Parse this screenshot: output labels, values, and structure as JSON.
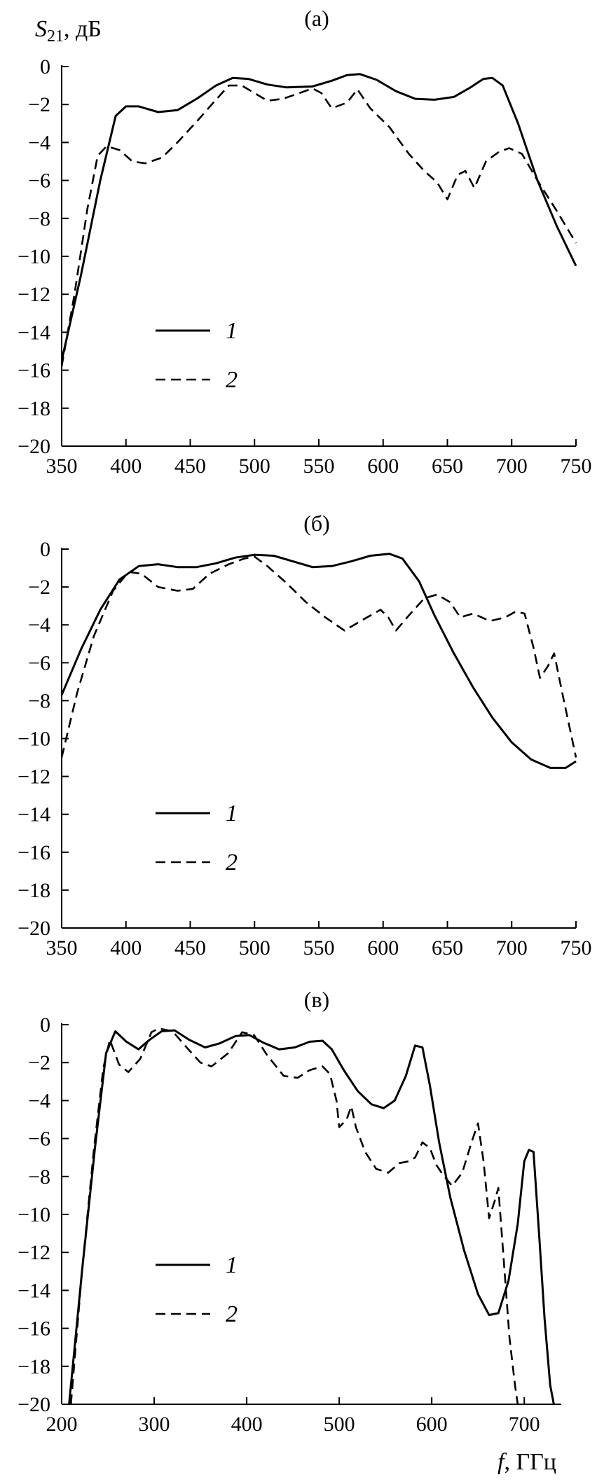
{
  "chart_data": [
    {
      "type": "line",
      "panel_label": "(а)",
      "ylabel": "S21, дБ",
      "xlim": [
        350,
        750
      ],
      "ylim": [
        -20,
        0
      ],
      "x_ticks": [
        350,
        400,
        450,
        500,
        550,
        600,
        650,
        700,
        750
      ],
      "y_ticks": [
        0,
        -2,
        -4,
        -6,
        -8,
        -10,
        -12,
        -14,
        -16,
        -18,
        -20
      ],
      "legend": [
        "1",
        "2"
      ],
      "series": [
        {
          "name": "1",
          "style": "solid",
          "points": [
            [
              350,
              -15.5
            ],
            [
              365,
              -11
            ],
            [
              380,
              -6
            ],
            [
              392,
              -2.6
            ],
            [
              400,
              -2.1
            ],
            [
              410,
              -2.1
            ],
            [
              425,
              -2.4
            ],
            [
              440,
              -2.3
            ],
            [
              455,
              -1.7
            ],
            [
              470,
              -1.0
            ],
            [
              483,
              -0.6
            ],
            [
              495,
              -0.65
            ],
            [
              510,
              -0.95
            ],
            [
              525,
              -1.1
            ],
            [
              545,
              -1.05
            ],
            [
              560,
              -0.75
            ],
            [
              572,
              -0.45
            ],
            [
              582,
              -0.4
            ],
            [
              595,
              -0.7
            ],
            [
              610,
              -1.3
            ],
            [
              625,
              -1.7
            ],
            [
              640,
              -1.75
            ],
            [
              655,
              -1.6
            ],
            [
              668,
              -1.1
            ],
            [
              678,
              -0.65
            ],
            [
              685,
              -0.6
            ],
            [
              693,
              -1.0
            ],
            [
              705,
              -3.0
            ],
            [
              720,
              -6.0
            ],
            [
              735,
              -8.4
            ],
            [
              750,
              -10.5
            ]
          ]
        },
        {
          "name": "2",
          "style": "dashed",
          "points": [
            [
              350,
              -15.8
            ],
            [
              360,
              -12
            ],
            [
              370,
              -7.5
            ],
            [
              378,
              -4.7
            ],
            [
              385,
              -4.2
            ],
            [
              395,
              -4.4
            ],
            [
              405,
              -5.0
            ],
            [
              415,
              -5.1
            ],
            [
              428,
              -4.8
            ],
            [
              440,
              -4.0
            ],
            [
              455,
              -2.9
            ],
            [
              468,
              -1.9
            ],
            [
              480,
              -1.0
            ],
            [
              490,
              -1.0
            ],
            [
              500,
              -1.4
            ],
            [
              510,
              -1.8
            ],
            [
              522,
              -1.7
            ],
            [
              535,
              -1.4
            ],
            [
              545,
              -1.15
            ],
            [
              552,
              -1.4
            ],
            [
              560,
              -2.2
            ],
            [
              572,
              -1.9
            ],
            [
              580,
              -1.2
            ],
            [
              590,
              -2.2
            ],
            [
              605,
              -3.2
            ],
            [
              620,
              -4.6
            ],
            [
              632,
              -5.5
            ],
            [
              642,
              -6.1
            ],
            [
              650,
              -7.0
            ],
            [
              658,
              -5.7
            ],
            [
              664,
              -5.5
            ],
            [
              671,
              -6.4
            ],
            [
              680,
              -5.0
            ],
            [
              690,
              -4.5
            ],
            [
              698,
              -4.3
            ],
            [
              708,
              -4.6
            ],
            [
              720,
              -6.0
            ],
            [
              735,
              -7.6
            ],
            [
              750,
              -9.3
            ]
          ]
        }
      ]
    },
    {
      "type": "line",
      "panel_label": "(б)",
      "xlim": [
        350,
        750
      ],
      "ylim": [
        -20,
        0
      ],
      "x_ticks": [
        350,
        400,
        450,
        500,
        550,
        600,
        650,
        700,
        750
      ],
      "y_ticks": [
        0,
        -2,
        -4,
        -6,
        -8,
        -10,
        -12,
        -14,
        -16,
        -18,
        -20
      ],
      "legend": [
        "1",
        "2"
      ],
      "series": [
        {
          "name": "1",
          "style": "solid",
          "points": [
            [
              350,
              -7.7
            ],
            [
              365,
              -5.3
            ],
            [
              380,
              -3.2
            ],
            [
              395,
              -1.6
            ],
            [
              410,
              -0.9
            ],
            [
              425,
              -0.8
            ],
            [
              440,
              -0.95
            ],
            [
              455,
              -0.95
            ],
            [
              470,
              -0.75
            ],
            [
              485,
              -0.45
            ],
            [
              500,
              -0.3
            ],
            [
              515,
              -0.35
            ],
            [
              530,
              -0.65
            ],
            [
              545,
              -0.95
            ],
            [
              560,
              -0.9
            ],
            [
              575,
              -0.65
            ],
            [
              590,
              -0.35
            ],
            [
              605,
              -0.25
            ],
            [
              615,
              -0.5
            ],
            [
              628,
              -1.7
            ],
            [
              640,
              -3.5
            ],
            [
              655,
              -5.5
            ],
            [
              670,
              -7.3
            ],
            [
              685,
              -8.9
            ],
            [
              700,
              -10.2
            ],
            [
              715,
              -11.1
            ],
            [
              730,
              -11.55
            ],
            [
              742,
              -11.55
            ],
            [
              750,
              -11.2
            ]
          ]
        },
        {
          "name": "2",
          "style": "dashed",
          "points": [
            [
              350,
              -11
            ],
            [
              362,
              -7.6
            ],
            [
              375,
              -4.6
            ],
            [
              390,
              -2.2
            ],
            [
              402,
              -1.2
            ],
            [
              412,
              -1.3
            ],
            [
              425,
              -2.0
            ],
            [
              440,
              -2.2
            ],
            [
              452,
              -2.1
            ],
            [
              465,
              -1.3
            ],
            [
              480,
              -0.8
            ],
            [
              492,
              -0.5
            ],
            [
              500,
              -0.4
            ],
            [
              510,
              -0.9
            ],
            [
              525,
              -1.8
            ],
            [
              540,
              -2.8
            ],
            [
              555,
              -3.6
            ],
            [
              570,
              -4.3
            ],
            [
              585,
              -3.7
            ],
            [
              598,
              -3.2
            ],
            [
              604,
              -3.6
            ],
            [
              610,
              -4.3
            ],
            [
              620,
              -3.5
            ],
            [
              632,
              -2.6
            ],
            [
              642,
              -2.4
            ],
            [
              652,
              -2.8
            ],
            [
              660,
              -3.6
            ],
            [
              670,
              -3.4
            ],
            [
              683,
              -3.8
            ],
            [
              695,
              -3.6
            ],
            [
              703,
              -3.3
            ],
            [
              710,
              -3.4
            ],
            [
              717,
              -5.2
            ],
            [
              722,
              -6.8
            ],
            [
              728,
              -6.2
            ],
            [
              733,
              -5.5
            ],
            [
              740,
              -7.8
            ],
            [
              750,
              -11
            ]
          ]
        }
      ]
    },
    {
      "type": "line",
      "panel_label": "(в)",
      "xlabel": "f, ГГц",
      "xlim": [
        200,
        740
      ],
      "ylim": [
        -20,
        0
      ],
      "x_ticks": [
        200,
        300,
        400,
        500,
        600,
        700
      ],
      "y_ticks": [
        0,
        -2,
        -4,
        -6,
        -8,
        -10,
        -12,
        -14,
        -16,
        -18,
        -20
      ],
      "legend": [
        "1",
        "2"
      ],
      "series": [
        {
          "name": "1",
          "style": "solid",
          "points": [
            [
              208,
              -20
            ],
            [
              222,
              -13
            ],
            [
              236,
              -6.5
            ],
            [
              248,
              -1.5
            ],
            [
              258,
              -0.35
            ],
            [
              270,
              -0.9
            ],
            [
              283,
              -1.3
            ],
            [
              295,
              -0.8
            ],
            [
              308,
              -0.35
            ],
            [
              322,
              -0.3
            ],
            [
              338,
              -0.8
            ],
            [
              355,
              -1.2
            ],
            [
              370,
              -1.0
            ],
            [
              388,
              -0.6
            ],
            [
              403,
              -0.55
            ],
            [
              418,
              -0.95
            ],
            [
              435,
              -1.3
            ],
            [
              452,
              -1.2
            ],
            [
              468,
              -0.9
            ],
            [
              482,
              -0.85
            ],
            [
              492,
              -1.3
            ],
            [
              505,
              -2.4
            ],
            [
              520,
              -3.5
            ],
            [
              535,
              -4.2
            ],
            [
              548,
              -4.4
            ],
            [
              560,
              -4.0
            ],
            [
              572,
              -2.7
            ],
            [
              582,
              -1.1
            ],
            [
              590,
              -1.2
            ],
            [
              598,
              -3.2
            ],
            [
              608,
              -6.2
            ],
            [
              620,
              -9.1
            ],
            [
              635,
              -11.9
            ],
            [
              650,
              -14.2
            ],
            [
              662,
              -15.3
            ],
            [
              672,
              -15.2
            ],
            [
              683,
              -13.5
            ],
            [
              693,
              -10.5
            ],
            [
              700,
              -7.2
            ],
            [
              705,
              -6.6
            ],
            [
              710,
              -6.7
            ],
            [
              716,
              -11
            ],
            [
              722,
              -15.5
            ],
            [
              728,
              -19
            ],
            [
              732,
              -20
            ]
          ]
        },
        {
          "name": "2",
          "style": "dashed",
          "points": [
            [
              210,
              -20
            ],
            [
              222,
              -13
            ],
            [
              235,
              -6.5
            ],
            [
              245,
              -2.3
            ],
            [
              252,
              -0.8
            ],
            [
              262,
              -2.1
            ],
            [
              272,
              -2.5
            ],
            [
              285,
              -1.8
            ],
            [
              297,
              -0.4
            ],
            [
              305,
              -0.2
            ],
            [
              320,
              -0.35
            ],
            [
              335,
              -1.2
            ],
            [
              350,
              -2.0
            ],
            [
              362,
              -2.2
            ],
            [
              380,
              -1.5
            ],
            [
              395,
              -0.4
            ],
            [
              408,
              -0.55
            ],
            [
              422,
              -1.6
            ],
            [
              440,
              -2.7
            ],
            [
              455,
              -2.8
            ],
            [
              468,
              -2.4
            ],
            [
              482,
              -2.2
            ],
            [
              490,
              -2.6
            ],
            [
              497,
              -4.0
            ],
            [
              500,
              -5.4
            ],
            [
              508,
              -5.0
            ],
            [
              513,
              -4.3
            ],
            [
              518,
              -5.4
            ],
            [
              528,
              -6.7
            ],
            [
              540,
              -7.6
            ],
            [
              553,
              -7.8
            ],
            [
              565,
              -7.3
            ],
            [
              575,
              -7.2
            ],
            [
              582,
              -7.0
            ],
            [
              590,
              -6.2
            ],
            [
              598,
              -6.5
            ],
            [
              605,
              -7.4
            ],
            [
              612,
              -7.9
            ],
            [
              622,
              -8.5
            ],
            [
              633,
              -7.8
            ],
            [
              643,
              -6.2
            ],
            [
              650,
              -5.2
            ],
            [
              656,
              -7.2
            ],
            [
              662,
              -10.2
            ],
            [
              668,
              -9.3
            ],
            [
              672,
              -8.6
            ],
            [
              678,
              -12.5
            ],
            [
              684,
              -16.5
            ],
            [
              690,
              -19
            ],
            [
              693,
              -20
            ]
          ]
        }
      ]
    }
  ]
}
